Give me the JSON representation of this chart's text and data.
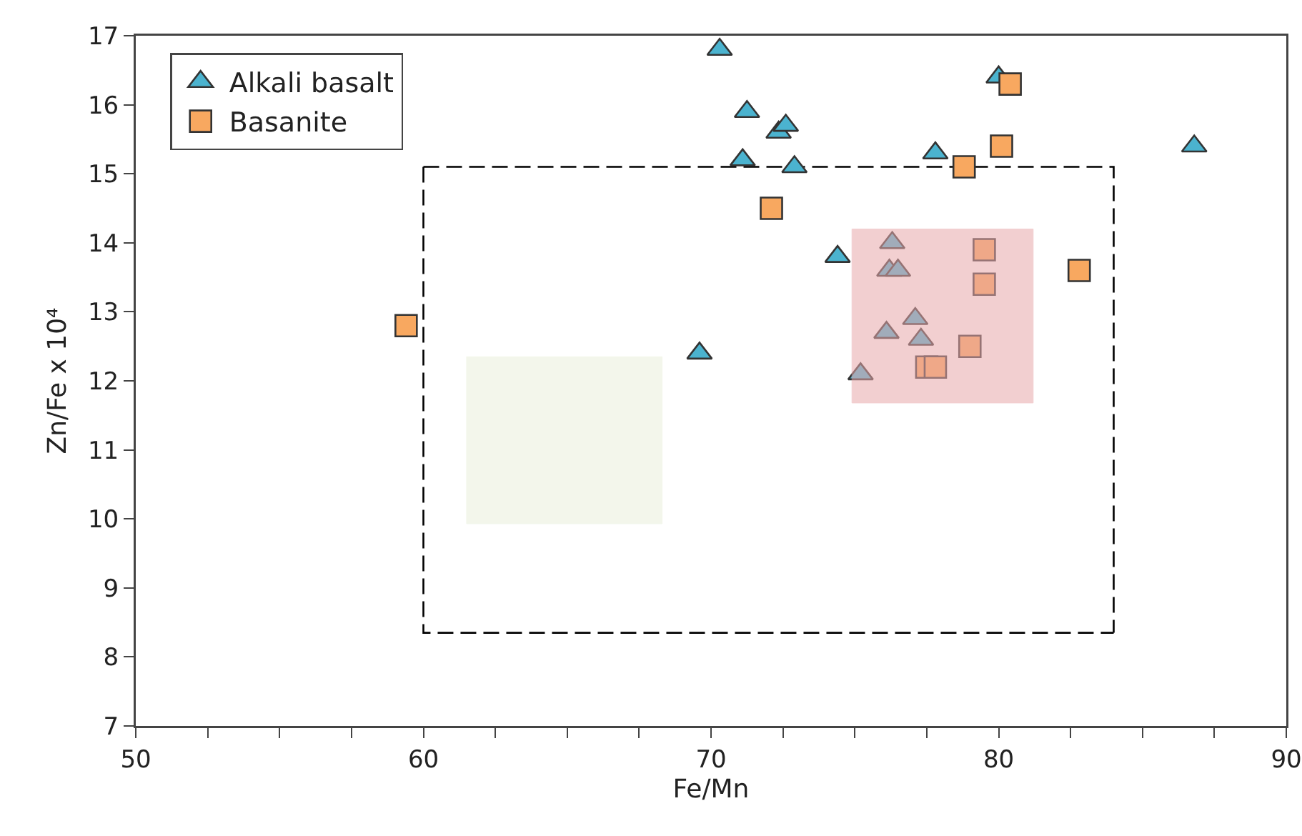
{
  "chart_data": {
    "type": "scatter",
    "xlabel": "Fe/Mn",
    "ylabel": "Zn/Fe x 10⁴",
    "xlim": [
      50,
      90
    ],
    "ylim": [
      7,
      17
    ],
    "xticks": [
      50,
      {
        "value": 52.5,
        "label": null
      },
      {
        "value": 55,
        "label": null
      },
      {
        "value": 57.5,
        "label": null
      },
      60,
      {
        "value": 62.5,
        "label": null
      },
      {
        "value": 65,
        "label": null
      },
      {
        "value": 67.5,
        "label": null
      },
      70,
      {
        "value": 72.5,
        "label": null
      },
      {
        "value": 75,
        "label": null
      },
      {
        "value": 77.5,
        "label": null
      },
      80,
      {
        "value": 82.5,
        "label": null
      },
      {
        "value": 85,
        "label": null
      },
      {
        "value": 87.5,
        "label": null
      },
      90
    ],
    "yticks": [
      7,
      8,
      9,
      10,
      11,
      12,
      13,
      14,
      15,
      16,
      17
    ],
    "grid": false,
    "legend": "top left",
    "series": [
      {
        "type": "line",
        "color": "#000000",
        "line_style": "dashed",
        "x": [
          60,
          84,
          84
        ],
        "values": [
          15.1,
          15.1,
          8.35
        ]
      },
      {
        "type": "line",
        "color": "#000000",
        "line_style": "dashed",
        "x": [
          60,
          60,
          84
        ],
        "values": [
          15.1,
          8.35,
          8.35
        ]
      },
      {
        "type": "area",
        "color": "#eaf0dc",
        "x": [
          61.5,
          68.3,
          68.3,
          61.5,
          61.5
        ],
        "values": [
          9.93,
          9.93,
          12.35,
          12.35,
          9.93
        ]
      },
      {
        "type": "scatter",
        "name": "Alkali basalt",
        "color": "#4bb3cf",
        "marker": "triangle",
        "x": [
          70.3,
          71.25,
          71.1,
          72.35,
          72.6,
          72.9,
          77.8,
          80,
          86.8,
          74.4,
          69.6,
          76.3,
          76.2,
          76.5,
          76.1,
          77.1,
          77.3,
          75.2
        ],
        "values": [
          16.8,
          15.9,
          15.2,
          15.6,
          15.7,
          15.1,
          15.3,
          16.4,
          15.4,
          13.8,
          12.4,
          14,
          13.6,
          13.6,
          12.7,
          12.9,
          12.6,
          12.1
        ]
      },
      {
        "type": "scatter",
        "name": "Basanite",
        "color": "#f8a860",
        "marker": "square",
        "x": [
          59.4,
          72.1,
          78.8,
          80.1,
          80.4,
          82.8,
          79.5,
          79.5,
          79,
          77.5,
          77.8
        ],
        "values": [
          12.8,
          14.5,
          15.1,
          15.4,
          16.3,
          13.6,
          13.9,
          13.4,
          12.5,
          12.2,
          12.2
        ]
      },
      {
        "type": "area",
        "color": "#e8a8aa",
        "x": [
          74.9,
          81.2,
          81.2,
          74.9,
          74.9
        ],
        "values": [
          11.68,
          11.68,
          14.2,
          14.2,
          11.68
        ]
      }
    ]
  }
}
